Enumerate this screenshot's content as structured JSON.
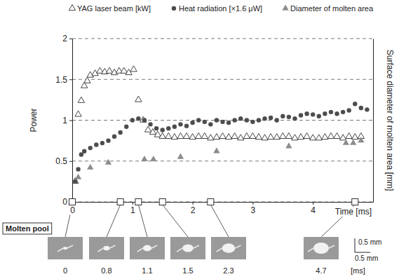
{
  "chart_data": {
    "type": "scatter",
    "xlabel": "Time [ms]",
    "ylabel": "Power",
    "y2label": "Surface diameter of molten area [mm]",
    "xlim": [
      0,
      5
    ],
    "xticks": [
      0,
      1,
      2,
      3,
      4
    ],
    "ylim": [
      0,
      2
    ],
    "yticks": [
      0,
      0.5,
      1,
      1.5,
      2
    ],
    "y2lim": [
      0,
      2
    ],
    "grid": true,
    "legend": "top",
    "series": [
      {
        "name": "YAG laser beam [kW]",
        "color": "#444444",
        "marker": "triangle-open",
        "x": [
          0.05,
          0.1,
          0.15,
          0.2,
          0.25,
          0.3,
          0.38,
          0.46,
          0.54,
          0.62,
          0.7,
          0.78,
          0.86,
          0.94,
          1.02,
          1.1,
          1.18,
          1.26,
          1.34,
          1.42,
          1.5,
          1.6,
          1.7,
          1.8,
          1.9,
          2.0,
          2.1,
          2.2,
          2.3,
          2.4,
          2.5,
          2.6,
          2.7,
          2.8,
          2.9,
          3.0,
          3.1,
          3.2,
          3.3,
          3.4,
          3.5,
          3.6,
          3.7,
          3.8,
          3.9,
          4.0,
          4.1,
          4.2,
          4.3,
          4.4,
          4.5,
          4.6,
          4.7,
          4.8
        ],
        "values": [
          0.25,
          1.07,
          1.24,
          1.42,
          1.48,
          1.55,
          1.57,
          1.6,
          1.59,
          1.6,
          1.58,
          1.6,
          1.6,
          1.58,
          1.62,
          1.25,
          1.0,
          0.88,
          0.85,
          0.82,
          0.8,
          0.8,
          0.79,
          0.8,
          0.8,
          0.79,
          0.8,
          0.8,
          0.78,
          0.79,
          0.8,
          0.79,
          0.8,
          0.78,
          0.8,
          0.8,
          0.79,
          0.78,
          0.79,
          0.79,
          0.8,
          0.8,
          0.78,
          0.79,
          0.8,
          0.78,
          0.78,
          0.79,
          0.8,
          0.8,
          0.78,
          0.8,
          0.79,
          0.8
        ]
      },
      {
        "name": "Heat radiation [×1.6 μW]",
        "color": "#4d4d4d",
        "marker": "circle",
        "x": [
          0.05,
          0.1,
          0.15,
          0.2,
          0.3,
          0.4,
          0.5,
          0.6,
          0.7,
          0.8,
          0.9,
          1.0,
          1.1,
          1.2,
          1.3,
          1.4,
          1.5,
          1.6,
          1.7,
          1.8,
          1.9,
          2.0,
          2.1,
          2.2,
          2.3,
          2.4,
          2.5,
          2.6,
          2.7,
          2.8,
          2.9,
          3.0,
          3.1,
          3.2,
          3.3,
          3.4,
          3.5,
          3.6,
          3.7,
          3.8,
          3.9,
          4.0,
          4.1,
          4.2,
          4.3,
          4.4,
          4.5,
          4.6,
          4.7,
          4.8,
          4.9
        ],
        "values": [
          0.25,
          0.4,
          0.58,
          0.62,
          0.66,
          0.7,
          0.72,
          0.75,
          0.8,
          0.85,
          0.92,
          1.0,
          1.02,
          1.0,
          0.95,
          0.9,
          0.88,
          0.9,
          0.92,
          0.95,
          0.93,
          0.97,
          1.0,
          0.98,
          0.95,
          1.0,
          0.98,
          0.97,
          1.0,
          1.02,
          1.0,
          0.98,
          1.0,
          1.02,
          1.03,
          1.0,
          1.05,
          1.04,
          1.02,
          1.06,
          1.08,
          1.07,
          1.05,
          1.08,
          1.1,
          1.08,
          1.1,
          1.12,
          1.2,
          1.15,
          1.13
        ]
      },
      {
        "name": "Diameter of molten area",
        "color": "#8c8c8c",
        "marker": "triangle",
        "axis": "y2",
        "x": [
          0.1,
          0.3,
          0.6,
          1.2,
          1.35,
          1.8,
          2.4,
          3.6,
          4.55,
          4.67,
          4.8
        ],
        "values": [
          0.3,
          0.42,
          0.48,
          0.52,
          0.52,
          0.55,
          0.62,
          0.68,
          0.72,
          0.72,
          0.75
        ]
      }
    ],
    "snapshots": {
      "label": "Molten pool",
      "times": [
        0,
        0.8,
        1.1,
        1.5,
        2.3,
        4.7
      ],
      "unit": "[ms]",
      "scale_labels": [
        "0.5 mm",
        "0.5 mm"
      ]
    }
  }
}
